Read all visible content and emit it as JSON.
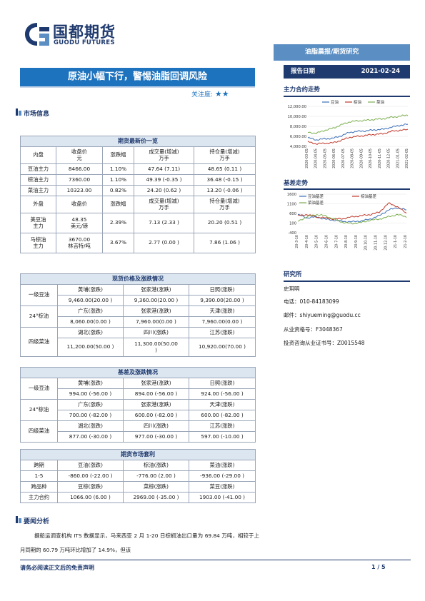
{
  "brand": {
    "name_cn": "国都期货",
    "name_en": "GUODU FUTURES"
  },
  "category": "油脂晨报/期货研究",
  "report_date_label": "报告日期",
  "report_date": "2021-02-24",
  "title": "原油小幅下行，警惕油脂回调风险",
  "attention_label": "关注度:",
  "attention_stars": "★★",
  "market_info_label": "市场信息",
  "futures_table": {
    "title": "期货最新价一览",
    "domestic_headers": [
      "内盘",
      "收盘价\n元",
      "涨跌幅",
      "成交量(增减)\n万手",
      "持仓量(增减)\n万手"
    ],
    "domestic_rows": [
      [
        "豆油主力",
        "8466.00",
        "1.10%",
        "47.64 (7.11)",
        "48.65 (0.11 )"
      ],
      [
        "棕油主力",
        "7360.00",
        "1.10%",
        "49.39 (-0.35 )",
        "36.48 (-0.15 )"
      ],
      [
        "菜油主力",
        "10323.00",
        "0.82%",
        "24.20 (0.62 )",
        "13.20 (-0.06 )"
      ]
    ],
    "foreign_headers": [
      "外盘",
      "收盘价",
      "涨跌幅",
      "成交量(增减)\n万手",
      "持仓量(增减)\n万手"
    ],
    "foreign_rows": [
      [
        "美豆油\n主力",
        "48.35\n美元/磅",
        "2.39%",
        "7.13 (2.33 )",
        "20.20 (0.51 )"
      ],
      [
        "马棕油\n主力",
        "3670.00\n林吉特/吨",
        "3.67%",
        "2.77 (0.00 )",
        "7.86 (1.06 )"
      ]
    ]
  },
  "spot_table": {
    "title": "现货价格及涨跌情况",
    "rows": [
      {
        "type": "loc",
        "cells": [
          "黄埔(涨跌)",
          "张家港(涨跌)",
          "日照(涨跌)"
        ]
      },
      {
        "type": "val",
        "label": "一级豆油",
        "cells": [
          "9,460.00(20.00 )",
          "9,360.00(20.00 )",
          "9,390.00(20.00 )"
        ]
      },
      {
        "type": "loc",
        "cells": [
          "广东(涨跌)",
          "张家港(涨跌)",
          "天津(涨跌)"
        ]
      },
      {
        "type": "val",
        "label": "24°棕油",
        "cells": [
          "8,060.00(0.00 )",
          "7,960.00(0.00 )",
          "7,960.00(0.00 )"
        ]
      },
      {
        "type": "loc",
        "cells": [
          "湖北(涨跌)",
          "四川(涨跌)",
          "江苏(涨跌)"
        ]
      },
      {
        "type": "val",
        "label": "四级菜油",
        "cells": [
          "11,200.00(50.00 )",
          "11,300.00(50.00\n)",
          "10,920.00(70.00 )"
        ]
      }
    ]
  },
  "basis_table": {
    "title": "基差及涨跌情况",
    "rows": [
      {
        "type": "loc",
        "cells": [
          "黄埔(涨跌)",
          "张家港(涨跌)",
          "日照(涨跌)"
        ]
      },
      {
        "type": "val",
        "label": "一级豆油",
        "cells": [
          "994.00 (-56.00 )",
          "894.00 (-56.00 )",
          "924.00 (-56.00 )"
        ]
      },
      {
        "type": "loc",
        "cells": [
          "广东(涨跌)",
          "张家港(涨跌)",
          "天津(涨跌)"
        ]
      },
      {
        "type": "val",
        "label": "24°棕油",
        "cells": [
          "700.00 (-82.00 )",
          "600.00 (-82.00 )",
          "600.00 (-82.00 )"
        ]
      },
      {
        "type": "loc",
        "cells": [
          "湖北(涨跌)",
          "四川(涨跌)",
          "江苏(涨跌)"
        ]
      },
      {
        "type": "val",
        "label": "四级菜油",
        "cells": [
          "877.00 (-30.00 )",
          "977.00 (-30.00 )",
          "597.00 (-10.00 )"
        ]
      }
    ]
  },
  "arb_table": {
    "title": "期货市场套利",
    "rows": [
      {
        "type": "loc",
        "label": "跨期",
        "cells": [
          "豆油(涨跌)",
          "棕油(涨跌)",
          "菜油(涨跌)"
        ]
      },
      {
        "type": "val",
        "label": "1-5",
        "cells": [
          "-860.00 (-22.00 )",
          "-776.00 (2.00 )",
          "-936.00 (-29.00 )"
        ]
      },
      {
        "type": "loc",
        "label": "跨品种",
        "cells": [
          "豆棕(涨跌)",
          "菜棕(涨跌)",
          "菜豆(涨跌)"
        ]
      },
      {
        "type": "val",
        "label": "主力合约",
        "cells": [
          "1066.00 (6.00 )",
          "2969.00 (-35.00 )",
          "1903.00 (-41.00 )"
        ]
      }
    ]
  },
  "analysis": {
    "heading": "要闻分析",
    "text": "据船运调查机构 ITS 数据显示，马来西亚 2 月 1-20 日棕榈油出口量为 69.84 万吨，相较于上月同期的 60.79 万吨环比增加了 14.9%，但该"
  },
  "sidebar": {
    "trend_heading": "主力合约走势",
    "basis_heading": "基差走势",
    "research_heading": "研究所",
    "analyst": "史玥明",
    "phone": "电话：010-84183099",
    "email": "邮件：shiyueming@guodu.cc",
    "qualification": "从业资格号：F3048367",
    "advisory": "投资咨询从业证书号：Z0015548"
  },
  "chart_data": [
    {
      "type": "line",
      "title": "",
      "legend": [
        "豆油",
        "棕油",
        "菜油"
      ],
      "legend_placement": "top",
      "colors": [
        "#3b6fb6",
        "#c0392b",
        "#7cae4f"
      ],
      "ylim": [
        4000,
        12000
      ],
      "yticks": [
        "12,000.00",
        "10,000.00",
        "8,000.00",
        "6,000.00",
        "4,000.00"
      ],
      "xticks": [
        "2020-03-05",
        "2020-04-05",
        "2020-05-05",
        "2020-06-05",
        "2020-07-05",
        "2020-08-05",
        "2020-09-05",
        "2020-10-05",
        "2020-11-05",
        "2020-12-05",
        "2021-01-05",
        "2021-02-05"
      ],
      "series": [
        {
          "name": "豆油",
          "values": [
            5700,
            5300,
            5500,
            5600,
            6100,
            6800,
            7000,
            7100,
            7300,
            7400,
            7800,
            8200,
            8400
          ]
        },
        {
          "name": "棕油",
          "values": [
            4900,
            4500,
            4600,
            4700,
            5200,
            5800,
            6000,
            6200,
            6400,
            6500,
            7000,
            7200,
            7350
          ]
        },
        {
          "name": "菜油",
          "values": [
            6800,
            6600,
            7200,
            7600,
            8300,
            8900,
            9100,
            9200,
            9400,
            9500,
            9800,
            10000,
            10300
          ]
        }
      ]
    },
    {
      "type": "line",
      "title": "",
      "legend": [
        "豆油基差",
        "棕油基差",
        "菜油基差"
      ],
      "legend_placement": "top",
      "colors": [
        "#3b6fb6",
        "#c0392b",
        "#7cae4f"
      ],
      "ylim": [
        -100,
        1600
      ],
      "yticks": [
        "1600",
        "1100",
        "600",
        "100",
        "-400"
      ],
      "xticks": [
        "20-3-10",
        "20-4-10",
        "20-5-10",
        "20-6-10",
        "20-7-10",
        "20-8-10",
        "20-9-10",
        "20-10-10",
        "20-11-10",
        "20-12-10",
        "21-1-10",
        "21-2-10"
      ],
      "series": [
        {
          "name": "豆油基差",
          "values": [
            700,
            550,
            600,
            500,
            450,
            400,
            380,
            420,
            500,
            650,
            900,
            1000,
            900
          ]
        },
        {
          "name": "棕油基差",
          "values": [
            650,
            700,
            600,
            550,
            500,
            520,
            600,
            650,
            700,
            800,
            1200,
            1050,
            750
          ]
        },
        {
          "name": "菜油基差",
          "values": [
            400,
            600,
            700,
            650,
            500,
            350,
            300,
            350,
            450,
            500,
            600,
            700,
            600
          ]
        }
      ]
    }
  ]
}
